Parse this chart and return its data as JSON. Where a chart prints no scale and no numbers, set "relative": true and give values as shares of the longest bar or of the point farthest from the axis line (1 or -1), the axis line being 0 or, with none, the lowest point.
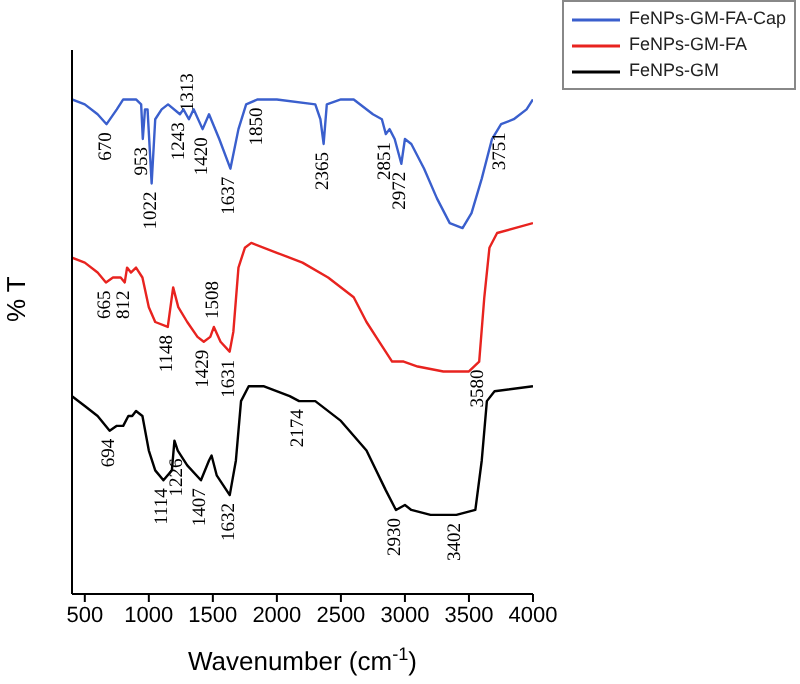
{
  "chart_data": {
    "type": "line",
    "xlabel": "Wavenumber (cm$^{-1}$)",
    "ylabel": "% T",
    "relative": true,
    "xlim": [
      400,
      4000
    ],
    "xticks": [
      500,
      1000,
      1500,
      2000,
      2500,
      3000,
      3500,
      4000
    ],
    "grid": false,
    "legend": "top right",
    "marker": "none",
    "line_style": "solid",
    "series": [
      {
        "name": "FeNPs-GM-FA-Cap",
        "color": "#3a5fcd",
        "x": [
          400,
          500,
          600,
          670,
          750,
          800,
          900,
          940,
          953,
          970,
          990,
          1022,
          1050,
          1100,
          1150,
          1243,
          1270,
          1313,
          1350,
          1420,
          1470,
          1550,
          1637,
          1700,
          1760,
          1850,
          2000,
          2300,
          2340,
          2365,
          2390,
          2500,
          2600,
          2750,
          2820,
          2851,
          2880,
          2920,
          2972,
          3000,
          3050,
          3150,
          3250,
          3350,
          3450,
          3520,
          3600,
          3680,
          3751,
          3850,
          3950,
          4000
        ],
        "values": [
          1.0,
          0.99,
          0.97,
          0.95,
          0.98,
          1.0,
          1.0,
          0.99,
          0.92,
          0.98,
          0.98,
          0.83,
          0.96,
          0.98,
          0.99,
          0.97,
          0.98,
          0.96,
          0.98,
          0.94,
          0.97,
          0.92,
          0.86,
          0.94,
          0.99,
          1.0,
          1.0,
          0.99,
          0.96,
          0.91,
          0.99,
          1.0,
          1.0,
          0.97,
          0.96,
          0.93,
          0.94,
          0.92,
          0.87,
          0.92,
          0.91,
          0.86,
          0.8,
          0.75,
          0.74,
          0.77,
          0.84,
          0.92,
          0.95,
          0.96,
          0.98,
          1.0
        ]
      },
      {
        "name": "FeNPs-GM-FA",
        "color": "#e8231f",
        "x": [
          400,
          500,
          600,
          665,
          720,
          780,
          812,
          830,
          860,
          900,
          950,
          1000,
          1050,
          1148,
          1190,
          1230,
          1300,
          1380,
          1429,
          1480,
          1508,
          1560,
          1631,
          1660,
          1700,
          1750,
          1800,
          2000,
          2200,
          2400,
          2600,
          2700,
          2800,
          2900,
          2990,
          3100,
          3300,
          3500,
          3580,
          3620,
          3660,
          3720,
          4000
        ],
        "values": [
          0.68,
          0.67,
          0.65,
          0.63,
          0.64,
          0.64,
          0.63,
          0.66,
          0.65,
          0.66,
          0.64,
          0.58,
          0.55,
          0.54,
          0.62,
          0.58,
          0.55,
          0.52,
          0.51,
          0.52,
          0.54,
          0.51,
          0.49,
          0.53,
          0.66,
          0.7,
          0.71,
          0.69,
          0.67,
          0.64,
          0.6,
          0.55,
          0.51,
          0.47,
          0.47,
          0.46,
          0.45,
          0.45,
          0.47,
          0.6,
          0.7,
          0.73,
          0.75
        ]
      },
      {
        "name": "FeNPs-GM",
        "color": "#000000",
        "x": [
          400,
          500,
          600,
          694,
          750,
          800,
          840,
          870,
          900,
          950,
          1000,
          1050,
          1114,
          1180,
          1200,
          1226,
          1300,
          1407,
          1470,
          1490,
          1530,
          1632,
          1680,
          1720,
          1780,
          1900,
          2100,
          2174,
          2300,
          2500,
          2700,
          2850,
          2930,
          3000,
          3050,
          3200,
          3402,
          3550,
          3600,
          3640,
          3700,
          4000
        ],
        "values": [
          0.4,
          0.38,
          0.36,
          0.33,
          0.34,
          0.34,
          0.36,
          0.36,
          0.37,
          0.36,
          0.29,
          0.25,
          0.23,
          0.25,
          0.31,
          0.29,
          0.26,
          0.23,
          0.27,
          0.28,
          0.24,
          0.2,
          0.27,
          0.39,
          0.42,
          0.42,
          0.4,
          0.39,
          0.39,
          0.35,
          0.29,
          0.21,
          0.17,
          0.18,
          0.17,
          0.16,
          0.16,
          0.17,
          0.27,
          0.39,
          0.41,
          0.42
        ]
      }
    ],
    "annotations": [
      {
        "text": "670",
        "x": 670,
        "y": 0.95
      },
      {
        "text": "953",
        "x": 953,
        "y": 0.92
      },
      {
        "text": "1022",
        "x": 1022,
        "y": 0.83
      },
      {
        "text": "1243",
        "x": 1243,
        "y": 0.97
      },
      {
        "text": "1313",
        "x": 1313,
        "y": 0.96
      },
      {
        "text": "1420",
        "x": 1420,
        "y": 0.94
      },
      {
        "text": "1637",
        "x": 1637,
        "y": 0.86
      },
      {
        "text": "1850",
        "x": 1850,
        "y": 1.0
      },
      {
        "text": "2365",
        "x": 2365,
        "y": 0.91
      },
      {
        "text": "2851",
        "x": 2851,
        "y": 0.93
      },
      {
        "text": "2972",
        "x": 2972,
        "y": 0.87
      },
      {
        "text": "3751",
        "x": 3751,
        "y": 0.95
      },
      {
        "text": "665",
        "x": 665,
        "y": 0.63
      },
      {
        "text": "812",
        "x": 812,
        "y": 0.63
      },
      {
        "text": "1148",
        "x": 1148,
        "y": 0.54
      },
      {
        "text": "1429",
        "x": 1429,
        "y": 0.51
      },
      {
        "text": "1508",
        "x": 1508,
        "y": 0.54
      },
      {
        "text": "1631",
        "x": 1631,
        "y": 0.49
      },
      {
        "text": "3580",
        "x": 3580,
        "y": 0.47
      },
      {
        "text": "694",
        "x": 694,
        "y": 0.33
      },
      {
        "text": "1114",
        "x": 1114,
        "y": 0.23
      },
      {
        "text": "1226",
        "x": 1226,
        "y": 0.29
      },
      {
        "text": "1407",
        "x": 1407,
        "y": 0.23
      },
      {
        "text": "1632",
        "x": 1632,
        "y": 0.2
      },
      {
        "text": "2174",
        "x": 2174,
        "y": 0.39
      },
      {
        "text": "2930",
        "x": 2930,
        "y": 0.17
      },
      {
        "text": "3402",
        "x": 3402,
        "y": 0.16
      }
    ]
  }
}
